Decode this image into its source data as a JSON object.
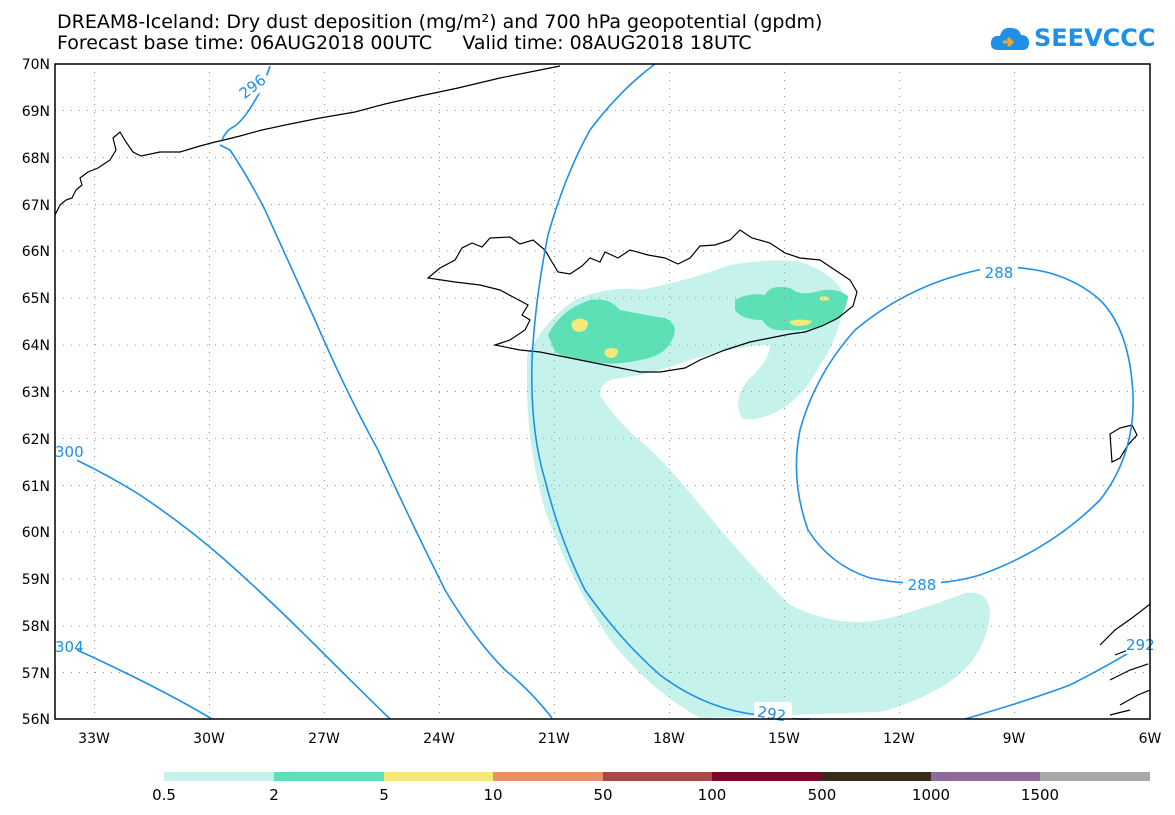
{
  "title": {
    "line1": "DREAM8-Iceland: Dry dust deposition (mg/m²) and 700 hPa geopotential (gpdm)",
    "line2": "Forecast base time: 06AUG2018 00UTC     Valid time: 08AUG2018 18UTC"
  },
  "logo": {
    "text": "SEEVCCC",
    "icon": "cloud-icon",
    "color": "#1e90e8"
  },
  "map": {
    "lat_range": [
      56,
      70
    ],
    "lon_range": [
      -34.5,
      -6
    ],
    "lat_labels": [
      "70N",
      "69N",
      "68N",
      "67N",
      "66N",
      "65N",
      "64N",
      "63N",
      "62N",
      "61N",
      "60N",
      "59N",
      "58N",
      "57N",
      "56N"
    ],
    "lon_labels": [
      "33W",
      "30W",
      "27W",
      "24W",
      "21W",
      "18W",
      "15W",
      "12W",
      "9W",
      "6W"
    ],
    "grid": "dotted",
    "contour_color": "#1e90e8",
    "contour_labels": [
      "296",
      "288",
      "288",
      "292",
      "300",
      "304",
      "292"
    ]
  },
  "legend": {
    "labels": [
      "0.5",
      "2",
      "5",
      "10",
      "50",
      "100",
      "500",
      "1000",
      "1500"
    ],
    "colors": [
      "#c6f2ec",
      "#5ee0b6",
      "#f5e97a",
      "#ea8e6c",
      "#a64a47",
      "#7a0a2a",
      "#3a2a1a",
      "#8e6a9a",
      "#a8a8a8"
    ]
  }
}
